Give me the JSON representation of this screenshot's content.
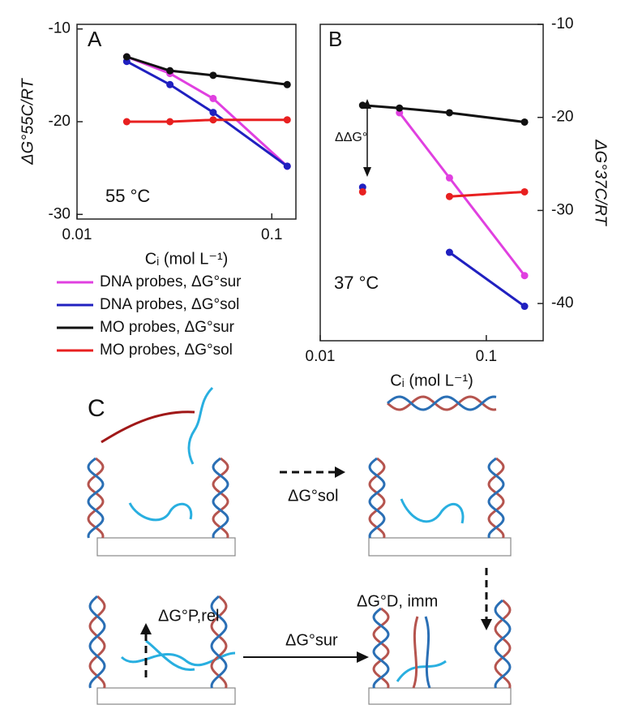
{
  "chart_data": [
    {
      "type": "line",
      "xscale": "log",
      "panel": "A",
      "x_label": "Cᵢ (mol L⁻¹)",
      "y_label": "ΔG°55C/RT",
      "x": [
        0.018,
        0.03,
        0.05,
        0.12
      ],
      "xlim": [
        0.01,
        0.133
      ],
      "xticks": [
        0.01,
        0.1
      ],
      "ylim": [
        -30.5,
        -9.5
      ],
      "yticks": [
        -10,
        -20,
        -30
      ],
      "yaxis": "left",
      "legend": "below",
      "annotations": [
        "55 °C"
      ],
      "series": [
        {
          "name": "DNA probes, ΔG°sur",
          "color": "#e040e0",
          "values": [
            -13,
            -14.8,
            -17.5,
            -24.8
          ]
        },
        {
          "name": "DNA probes, ΔG°sol",
          "color": "#2020c0",
          "values": [
            -13.5,
            -16,
            -19,
            -24.8
          ]
        },
        {
          "name": "MO probes, ΔG°sur",
          "color": "#111111",
          "values": [
            -13,
            -14.5,
            -15,
            -16
          ]
        },
        {
          "name": "MO probes, ΔG°sol",
          "color": "#e82020",
          "values": [
            -20,
            -20,
            -19.8,
            -19.8
          ]
        }
      ]
    },
    {
      "type": "line",
      "xscale": "log",
      "panel": "B",
      "x_label": "Cᵢ (mol L⁻¹)",
      "y_label": "ΔG°37C/RT",
      "x": [
        0.018,
        0.03,
        0.06,
        0.17
      ],
      "xlim": [
        0.01,
        0.22
      ],
      "xticks": [
        0.01,
        0.1
      ],
      "ylim": [
        -44,
        -10
      ],
      "yticks": [
        -10,
        -20,
        -30,
        -40
      ],
      "yaxis": "right",
      "annotations": [
        "37 °C",
        "ΔΔG°"
      ],
      "series": [
        {
          "color": "#e040e0",
          "values": [
            null,
            -19.5,
            -26.5,
            -37
          ]
        },
        {
          "color": "#2020c0",
          "values": [
            -27.5,
            null,
            -34.5,
            -40.3
          ]
        },
        {
          "color": "#111111",
          "values": [
            -18.7,
            -19,
            -19.5,
            -20.5
          ]
        },
        {
          "color": "#e82020",
          "values": [
            -28,
            null,
            -28.5,
            -28
          ]
        }
      ]
    }
  ],
  "diagram": {
    "panel": "C",
    "labels": [
      "ΔG°sol",
      "ΔG°P,rel",
      "ΔG°sur",
      "ΔG°D, imm"
    ]
  }
}
